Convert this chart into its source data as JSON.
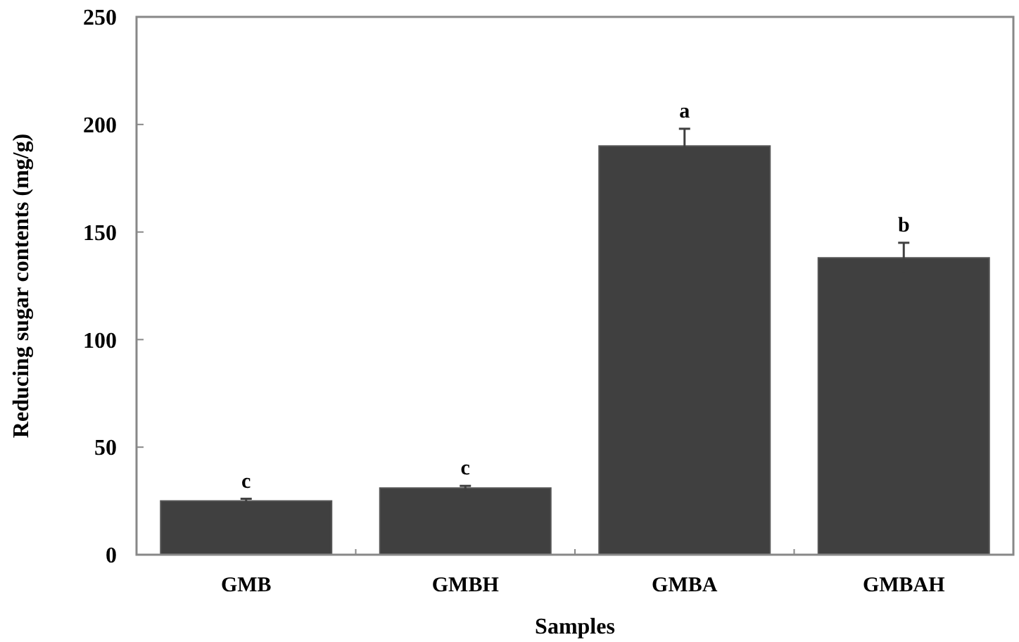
{
  "chart_data": {
    "type": "bar",
    "xlabel": "Samples",
    "ylabel": "Reducing sugar contents (mg/g)",
    "categories": [
      "GMB",
      "GMBH",
      "GMBA",
      "GMBAH"
    ],
    "values": [
      25,
      31,
      190,
      138
    ],
    "errors": [
      1,
      1,
      8,
      7
    ],
    "color": "#404040",
    "ylim": [
      0,
      250
    ],
    "yticks": [
      0,
      50,
      100,
      150,
      200,
      250
    ],
    "annotations": [
      {
        "text": "c",
        "x": "GMB",
        "y": 26
      },
      {
        "text": "c",
        "x": "GMBH",
        "y": 32
      },
      {
        "text": "a",
        "x": "GMBA",
        "y": 198
      },
      {
        "text": "b",
        "x": "GMBAH",
        "y": 145
      }
    ]
  }
}
